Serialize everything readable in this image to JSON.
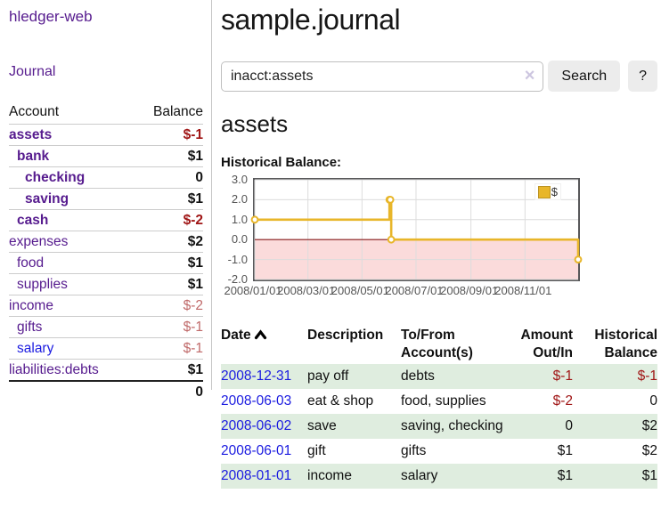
{
  "app": {
    "title": "hledger-web"
  },
  "sidebar": {
    "journal_link": "Journal",
    "accounts": {
      "header_account": "Account",
      "header_balance": "Balance",
      "rows": [
        {
          "name": "assets",
          "balance": "$-1",
          "depth": 1,
          "in_acct": true
        },
        {
          "name": "bank",
          "balance": "$1",
          "depth": 2,
          "in_acct": true
        },
        {
          "name": "checking",
          "balance": "0",
          "depth": 3,
          "in_acct": true
        },
        {
          "name": "saving",
          "balance": "$1",
          "depth": 3,
          "in_acct": true
        },
        {
          "name": "cash",
          "balance": "$-2",
          "depth": 2,
          "in_acct": true
        },
        {
          "name": "expenses",
          "balance": "$2",
          "depth": 1,
          "in_acct": false
        },
        {
          "name": "food",
          "balance": "$1",
          "depth": 2,
          "in_acct": false
        },
        {
          "name": "supplies",
          "balance": "$1",
          "depth": 2,
          "in_acct": false
        },
        {
          "name": "income",
          "balance": "$-2",
          "depth": 1,
          "in_acct": false
        },
        {
          "name": "gifts",
          "balance": "$-1",
          "depth": 2,
          "in_acct": false
        },
        {
          "name": "salary",
          "balance": "$-1",
          "depth": 2,
          "in_acct": false,
          "link_color": "blue"
        },
        {
          "name": "liabilities:debts",
          "balance": "$1",
          "depth": 1,
          "in_acct": false
        }
      ],
      "total": "0"
    }
  },
  "main": {
    "title": "sample.journal",
    "search": {
      "query": "inacct:assets",
      "clear_icon": "×",
      "button": "Search",
      "help": "?"
    },
    "account_title": "assets",
    "chart_heading": "Historical Balance:"
  },
  "chart_data": {
    "type": "line",
    "step": true,
    "title": "Historical Balance",
    "series": [
      {
        "name": "$",
        "points": [
          [
            "2008-01-01",
            1
          ],
          [
            "2008-06-01",
            2
          ],
          [
            "2008-06-02",
            2
          ],
          [
            "2008-06-03",
            0
          ],
          [
            "2008-12-31",
            -1
          ]
        ]
      }
    ],
    "ylim": [
      -2,
      3
    ],
    "ytick_labels": [
      "3.0",
      "2.0",
      "1.0",
      "0.0",
      "-1.0",
      "-2.0"
    ],
    "xlim": [
      "2008-01-01",
      "2008-12-31"
    ],
    "xticks": [
      {
        "date": "2008-01-01",
        "label": "2008/01/01"
      },
      {
        "date": "2008-03-01",
        "label": "2008/03/01"
      },
      {
        "date": "2008-05-01",
        "label": "2008/05/01"
      },
      {
        "date": "2008-07-01",
        "label": "2008/07/01"
      },
      {
        "date": "2008-09-01",
        "label": "2008/09/01"
      },
      {
        "date": "2008-11-01",
        "label": "2008/11/01"
      }
    ],
    "legend": {
      "position": "top-right",
      "label": "$"
    },
    "grid": true,
    "negative_area_shaded": true
  },
  "register": {
    "columns": [
      "Date",
      "Description",
      "To/From Account(s)",
      "Amount Out/In",
      "Historical Balance"
    ],
    "sort": {
      "column": "Date",
      "direction": "ascending"
    },
    "rows": [
      {
        "date": "2008-12-31",
        "description": "pay off",
        "accounts": "debts",
        "amount": "$-1",
        "balance": "$-1"
      },
      {
        "date": "2008-06-03",
        "description": "eat & shop",
        "accounts": "food, supplies",
        "amount": "$-2",
        "balance": "0"
      },
      {
        "date": "2008-06-02",
        "description": "save",
        "accounts": "saving, checking",
        "amount": "0",
        "balance": "$2"
      },
      {
        "date": "2008-06-01",
        "description": "gift",
        "accounts": "gifts",
        "amount": "$1",
        "balance": "$2"
      },
      {
        "date": "2008-01-01",
        "description": "income",
        "accounts": "salary",
        "amount": "$1",
        "balance": "$1"
      }
    ]
  },
  "colors": {
    "link_purple": "#561b8e",
    "link_blue": "#1b1be0",
    "negative_strong": "#a01616",
    "negative_weak": "#c06a6a",
    "row_green": "#dfeddf",
    "chart_line": "#e8b62a",
    "chart_negative_fill": "#fbdbdb",
    "chart_zero_line": "#8b1a1a",
    "chart_grid": "#dcdcdc"
  }
}
